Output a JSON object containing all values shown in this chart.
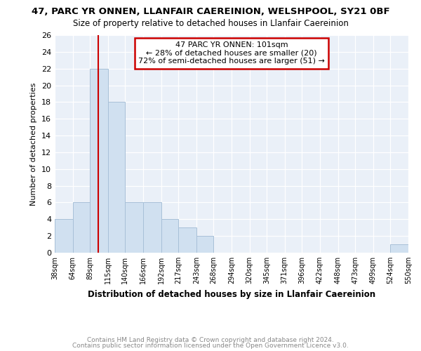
{
  "title": "47, PARC YR ONNEN, LLANFAIR CAEREINION, WELSHPOOL, SY21 0BF",
  "subtitle": "Size of property relative to detached houses in Llanfair Caereinion",
  "xlabel": "Distribution of detached houses by size in Llanfair Caereinion",
  "ylabel": "Number of detached properties",
  "bins": [
    38,
    64,
    89,
    115,
    140,
    166,
    192,
    217,
    243,
    268,
    294,
    320,
    345,
    371,
    396,
    422,
    448,
    473,
    499,
    524,
    550
  ],
  "bin_labels": [
    "38sqm",
    "64sqm",
    "89sqm",
    "115sqm",
    "140sqm",
    "166sqm",
    "192sqm",
    "217sqm",
    "243sqm",
    "268sqm",
    "294sqm",
    "320sqm",
    "345sqm",
    "371sqm",
    "396sqm",
    "422sqm",
    "448sqm",
    "473sqm",
    "499sqm",
    "524sqm",
    "550sqm"
  ],
  "counts": [
    4,
    6,
    22,
    18,
    6,
    6,
    4,
    3,
    2,
    0,
    0,
    0,
    0,
    0,
    0,
    0,
    0,
    0,
    0,
    1
  ],
  "bar_color": "#d0e0f0",
  "bar_edge_color": "#a8c0d8",
  "vline_x": 101,
  "vline_color": "#cc0000",
  "ylim": [
    0,
    26
  ],
  "yticks": [
    0,
    2,
    4,
    6,
    8,
    10,
    12,
    14,
    16,
    18,
    20,
    22,
    24,
    26
  ],
  "annotation_text": "47 PARC YR ONNEN: 101sqm\n← 28% of detached houses are smaller (20)\n72% of semi-detached houses are larger (51) →",
  "annotation_box_color": "#cc0000",
  "footnote1": "Contains HM Land Registry data © Crown copyright and database right 2024.",
  "footnote2": "Contains public sector information licensed under the Open Government Licence v3.0.",
  "bg_color": "#eaf0f8",
  "grid_color": "#ffffff"
}
